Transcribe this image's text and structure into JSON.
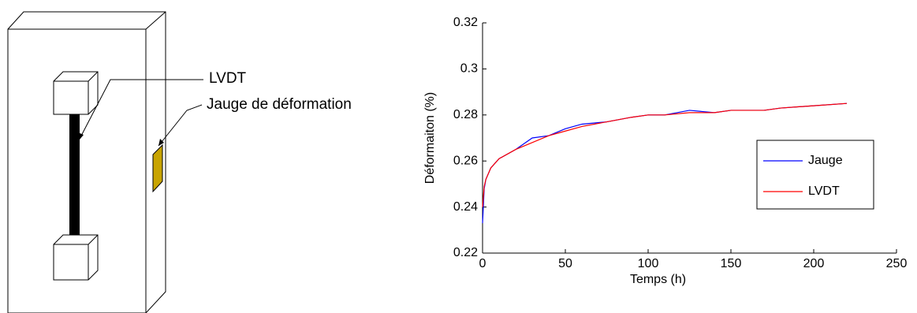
{
  "diagram": {
    "labels": [
      "LVDT",
      "Jauge de déformation"
    ]
  },
  "chart_data": {
    "type": "line",
    "xlabel": "Temps (h)",
    "ylabel": "Déformaiton (%)",
    "x": [
      0,
      1,
      2,
      5,
      10,
      20,
      30,
      40,
      50,
      60,
      75,
      90,
      100,
      110,
      125,
      140,
      150,
      170,
      180,
      200,
      220
    ],
    "series": [
      {
        "name": "Jauge",
        "color": "#0000ff",
        "values": [
          0.233,
          0.248,
          0.252,
          0.257,
          0.261,
          0.265,
          0.27,
          0.271,
          0.274,
          0.276,
          0.277,
          0.279,
          0.28,
          0.28,
          0.282,
          0.281,
          0.282,
          0.282,
          0.283,
          0.284,
          0.285
        ]
      },
      {
        "name": "LVDT",
        "color": "#ff0000",
        "values": [
          0.24,
          0.249,
          0.252,
          0.257,
          0.261,
          0.265,
          0.268,
          0.271,
          0.273,
          0.275,
          0.277,
          0.279,
          0.28,
          0.28,
          0.281,
          0.281,
          0.282,
          0.282,
          0.283,
          0.284,
          0.285
        ]
      }
    ],
    "xlim": [
      0,
      250
    ],
    "xticks": [
      0,
      50,
      100,
      150,
      200,
      250
    ],
    "ylim": [
      0.22,
      0.32
    ],
    "yticks": [
      0.22,
      0.24,
      0.26,
      0.28,
      0.3,
      0.32
    ]
  }
}
